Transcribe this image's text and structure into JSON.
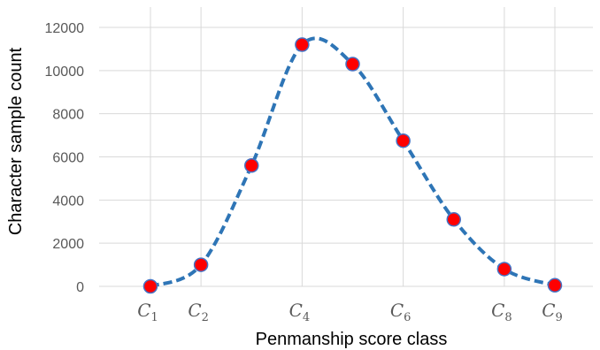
{
  "chart_data": {
    "type": "line",
    "xlabel": "Penmanship score class",
    "ylabel": "Character sample count",
    "ylim": [
      0,
      12000
    ],
    "yticks": [
      "0",
      "2000",
      "4000",
      "6000",
      "8000",
      "10000",
      "12000"
    ],
    "xlim": [
      0,
      10
    ],
    "xticks": [
      {
        "x": 1,
        "base": "C",
        "sub": "1"
      },
      {
        "x": 2,
        "base": "C",
        "sub": "2"
      },
      {
        "x": 4,
        "base": "C",
        "sub": "4"
      },
      {
        "x": 6,
        "base": "C",
        "sub": "6"
      },
      {
        "x": 8,
        "base": "C",
        "sub": "8"
      },
      {
        "x": 9,
        "base": "C",
        "sub": "9"
      }
    ],
    "x_gridlines": [
      1,
      2,
      4,
      6,
      8,
      9
    ],
    "grid": true,
    "series": [
      {
        "x": [
          1,
          2,
          3,
          4,
          5,
          6,
          7,
          8,
          9
        ],
        "values": [
          0,
          1000,
          5600,
          11200,
          10300,
          6750,
          3100,
          800,
          50
        ],
        "line_color": "#2E75B6",
        "line_style": "dashed",
        "marker_color": "#FF0000",
        "marker_edge_color": "#4472C4"
      }
    ]
  }
}
